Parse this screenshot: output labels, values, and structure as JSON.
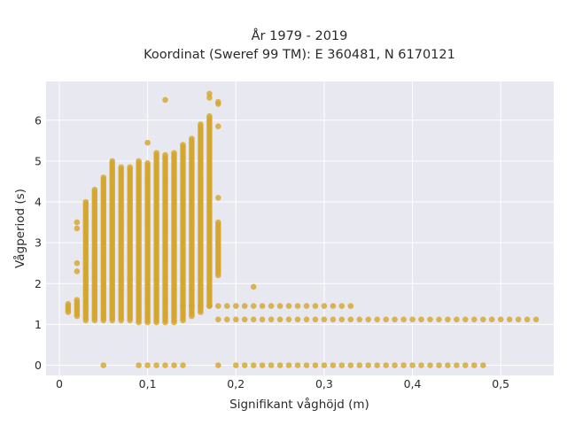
{
  "chart_data": {
    "type": "scatter",
    "title_line1": "År 1979 - 2019",
    "title_line2": "Koordinat (Sweref 99 TM): E 360481, N 6170121",
    "xlabel": "Signifikant våghöjd (m)",
    "ylabel": "Vågperiod (s)",
    "xlim": [
      -0.015,
      0.56
    ],
    "ylim": [
      -0.25,
      6.95
    ],
    "x_ticks": [
      0,
      0.1,
      0.2,
      0.3,
      0.4,
      0.5
    ],
    "x_tick_labels": [
      "0",
      "0,1",
      "0,2",
      "0,3",
      "0,4",
      "0,5"
    ],
    "y_ticks": [
      0,
      1,
      2,
      3,
      4,
      5,
      6
    ],
    "y_tick_labels": [
      "0",
      "1",
      "2",
      "3",
      "4",
      "5",
      "6"
    ],
    "grid": true,
    "colors": {
      "marker": "#d4a52a",
      "plot_bg": "#e8e8f0",
      "grid": "#ffffff"
    },
    "columns": [
      {
        "x": 0.01,
        "ymin": 1.3,
        "ymax": 1.5
      },
      {
        "x": 0.02,
        "ymin": 1.2,
        "ymax": 1.6,
        "extra": [
          2.3,
          2.5,
          3.35,
          3.5
        ]
      },
      {
        "x": 0.03,
        "ymin": 1.1,
        "ymax": 4.0
      },
      {
        "x": 0.04,
        "ymin": 1.1,
        "ymax": 4.3
      },
      {
        "x": 0.05,
        "ymin": 1.1,
        "ymax": 4.6
      },
      {
        "x": 0.06,
        "ymin": 1.1,
        "ymax": 5.0
      },
      {
        "x": 0.07,
        "ymin": 1.1,
        "ymax": 4.85
      },
      {
        "x": 0.08,
        "ymin": 1.1,
        "ymax": 4.85
      },
      {
        "x": 0.09,
        "ymin": 1.05,
        "ymax": 5.0
      },
      {
        "x": 0.1,
        "ymin": 1.05,
        "ymax": 4.95,
        "extra": [
          5.45
        ]
      },
      {
        "x": 0.11,
        "ymin": 1.05,
        "ymax": 5.2
      },
      {
        "x": 0.12,
        "ymin": 1.05,
        "ymax": 5.15,
        "extra": [
          6.5
        ]
      },
      {
        "x": 0.13,
        "ymin": 1.05,
        "ymax": 5.2
      },
      {
        "x": 0.14,
        "ymin": 1.1,
        "ymax": 5.4
      },
      {
        "x": 0.15,
        "ymin": 1.2,
        "ymax": 5.55
      },
      {
        "x": 0.16,
        "ymin": 1.3,
        "ymax": 5.9
      },
      {
        "x": 0.17,
        "ymin": 1.45,
        "ymax": 6.1,
        "extra": [
          6.55,
          6.65
        ]
      },
      {
        "x": 0.18,
        "ymin": 2.2,
        "ymax": 3.5,
        "extra": [
          4.1,
          5.85,
          6.4,
          6.45
        ]
      }
    ],
    "band_upper": {
      "xmin": 0.14,
      "xmax": 0.33,
      "y": 1.45
    },
    "band_mid": {
      "xmin": 0.18,
      "xmax": 0.54,
      "y": 1.12
    },
    "zero_row": {
      "x": [
        0.05,
        0.09,
        0.1,
        0.11,
        0.12,
        0.13,
        0.14,
        0.18,
        0.2,
        0.21,
        0.22,
        0.23,
        0.24,
        0.25,
        0.26,
        0.27,
        0.28,
        0.29,
        0.3,
        0.31,
        0.32,
        0.33,
        0.34,
        0.35,
        0.36,
        0.37,
        0.38,
        0.39,
        0.4,
        0.41,
        0.42,
        0.43,
        0.44,
        0.45,
        0.46,
        0.47,
        0.48
      ],
      "y": 0
    },
    "extra_points": [
      {
        "x": 0.22,
        "y": 1.92
      }
    ]
  }
}
